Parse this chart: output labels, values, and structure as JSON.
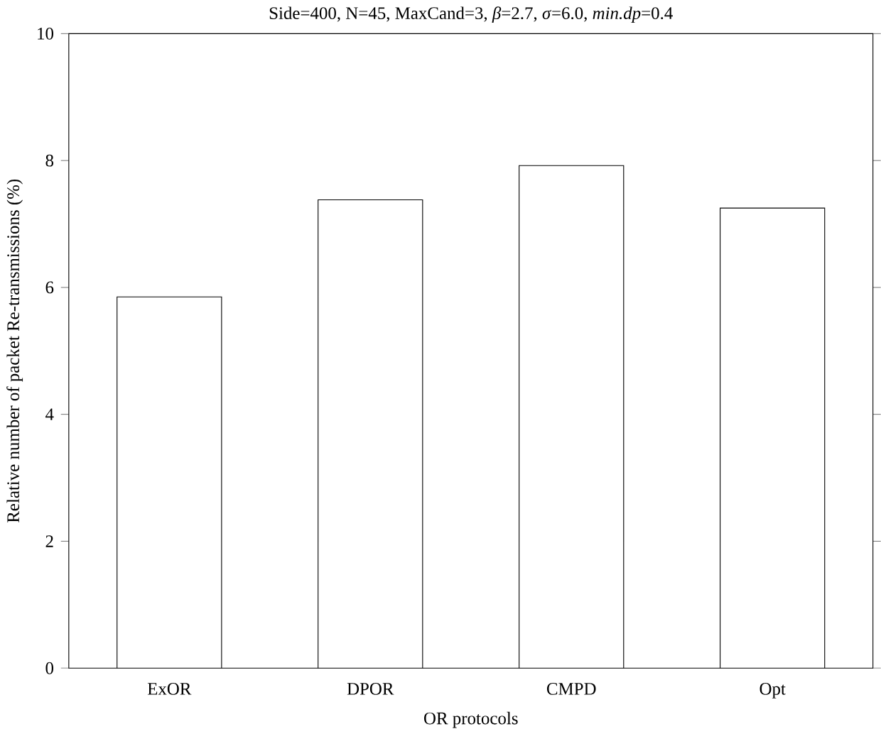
{
  "chart_data": {
    "type": "bar",
    "title": "Side=400, N=45, MaxCand=3, *β*=2.7, *σ*=6.0, *min.dp*=0.4",
    "xlabel": "OR protocols",
    "ylabel": "Relative number of packet Re-transmissions (%)",
    "categories": [
      "ExOR",
      "DPOR",
      "CMPD",
      "Opt"
    ],
    "values": [
      5.85,
      7.38,
      7.92,
      7.25
    ],
    "color": "#ffffff",
    "ylim": [
      0,
      10
    ],
    "yticks": [
      0,
      2,
      4,
      6,
      8,
      10
    ],
    "grid": false
  }
}
